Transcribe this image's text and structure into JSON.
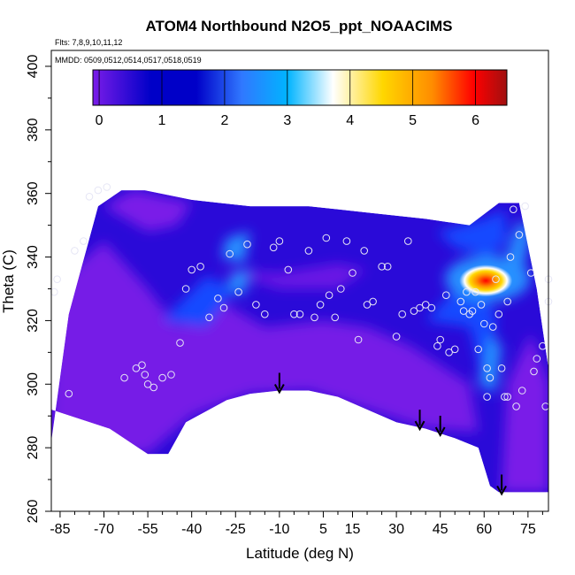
{
  "chart_data": {
    "type": "heatmap",
    "title": "ATOM4 Northbound N2O5_ppt_NOAACIMS",
    "flights_note": "Flts: 7,8,9,10,11,12",
    "dates_note": "MMDD: 0509,0512,0514,0517,0518,0519",
    "xlabel": "Latitude (deg N)",
    "ylabel": "Theta (C)",
    "xlim": [
      -88,
      82
    ],
    "ylim": [
      260,
      405
    ],
    "x_ticks": [
      -85,
      -70,
      -55,
      -40,
      -25,
      -10,
      5,
      15,
      30,
      45,
      60,
      75
    ],
    "x_tick_labels": [
      "-85",
      "-70",
      "-55",
      "-40",
      "-25",
      "-10",
      "5",
      "15",
      "30",
      "45",
      "60",
      "75"
    ],
    "y_ticks": [
      260,
      280,
      300,
      320,
      340,
      360,
      380,
      400
    ],
    "y_tick_labels": [
      "260",
      "280",
      "300",
      "320",
      "340",
      "360",
      "380",
      "400"
    ],
    "grid": false,
    "colorbar": {
      "range": [
        -0.1,
        6.5
      ],
      "ticks": [
        0,
        1,
        2,
        3,
        4,
        5,
        6
      ],
      "tick_labels": [
        "0",
        "1",
        "2",
        "3",
        "4",
        "5",
        "6"
      ],
      "colors": [
        "#7a1ce8",
        "#0000c8",
        "#3078ff",
        "#00b4ff",
        "#ffffff",
        "#ffd700",
        "#ff8c00",
        "#ff0000",
        "#a01010"
      ],
      "placement": "top"
    },
    "field_colors": {
      "background": "#2a0ad8",
      "low": "#7a1ce8",
      "medium": "#1848ff",
      "high": "#2890ff",
      "hotspot": [
        "#ff0000",
        "#ff8c00",
        "#ffd700"
      ]
    },
    "surface_boundary": [
      [
        -88,
        292
      ],
      [
        -68,
        286
      ],
      [
        -55,
        278
      ],
      [
        -48,
        278
      ],
      [
        -42,
        288
      ],
      [
        -28,
        295
      ],
      [
        -20,
        297
      ],
      [
        -10,
        298
      ],
      [
        0,
        298
      ],
      [
        10,
        296
      ],
      [
        20,
        292
      ],
      [
        30,
        288
      ],
      [
        40,
        286
      ],
      [
        50,
        283
      ],
      [
        58,
        280
      ],
      [
        62,
        268
      ],
      [
        65,
        266
      ],
      [
        82,
        266
      ]
    ],
    "top_boundary": [
      [
        -88,
        282
      ],
      [
        -82,
        322
      ],
      [
        -72,
        356
      ],
      [
        -64,
        361
      ],
      [
        -56,
        361
      ],
      [
        -40,
        358
      ],
      [
        -20,
        356
      ],
      [
        0,
        356
      ],
      [
        20,
        354
      ],
      [
        40,
        352
      ],
      [
        55,
        350
      ],
      [
        65,
        357
      ],
      [
        72,
        357
      ],
      [
        78,
        330
      ],
      [
        82,
        305
      ],
      [
        82,
        266
      ]
    ],
    "hotspot": {
      "lat": 63,
      "theta": 332,
      "max_value": 6.5
    },
    "observation_points": [
      [
        -87,
        329
      ],
      [
        -86,
        333
      ],
      [
        -80,
        342
      ],
      [
        -77,
        345
      ],
      [
        -75,
        359
      ],
      [
        -72,
        361
      ],
      [
        -69,
        362
      ],
      [
        -82,
        297
      ],
      [
        -63,
        302
      ],
      [
        -59,
        305
      ],
      [
        -57,
        306
      ],
      [
        -56,
        303
      ],
      [
        -55,
        300
      ],
      [
        -53,
        299
      ],
      [
        -50,
        302
      ],
      [
        -47,
        303
      ],
      [
        -44,
        313
      ],
      [
        -42,
        330
      ],
      [
        -40,
        336
      ],
      [
        -37,
        337
      ],
      [
        -34,
        321
      ],
      [
        -31,
        327
      ],
      [
        -29,
        324
      ],
      [
        -27,
        341
      ],
      [
        -24,
        329
      ],
      [
        -21,
        344
      ],
      [
        -18,
        325
      ],
      [
        -15,
        322
      ],
      [
        -12,
        343
      ],
      [
        -10,
        345
      ],
      [
        -7,
        336
      ],
      [
        -5,
        322
      ],
      [
        -3,
        322
      ],
      [
        0,
        342
      ],
      [
        2,
        321
      ],
      [
        4,
        325
      ],
      [
        6,
        346
      ],
      [
        7,
        328
      ],
      [
        9,
        321
      ],
      [
        11,
        330
      ],
      [
        13,
        345
      ],
      [
        15,
        335
      ],
      [
        17,
        314
      ],
      [
        19,
        342
      ],
      [
        20,
        325
      ],
      [
        22,
        326
      ],
      [
        25,
        337
      ],
      [
        27,
        337
      ],
      [
        30,
        315
      ],
      [
        32,
        322
      ],
      [
        34,
        345
      ],
      [
        36,
        323
      ],
      [
        38,
        324
      ],
      [
        40,
        325
      ],
      [
        42,
        324
      ],
      [
        44,
        312
      ],
      [
        45,
        314
      ],
      [
        47,
        328
      ],
      [
        48,
        310
      ],
      [
        50,
        311
      ],
      [
        52,
        326
      ],
      [
        53,
        323
      ],
      [
        54,
        329
      ],
      [
        55,
        322
      ],
      [
        56,
        323
      ],
      [
        57,
        329
      ],
      [
        58,
        311
      ],
      [
        59,
        325
      ],
      [
        60,
        319
      ],
      [
        61,
        305
      ],
      [
        61,
        296
      ],
      [
        62,
        302
      ],
      [
        63,
        318
      ],
      [
        64,
        333
      ],
      [
        65,
        322
      ],
      [
        66,
        305
      ],
      [
        67,
        296
      ],
      [
        68,
        326
      ],
      [
        68,
        296
      ],
      [
        69,
        340
      ],
      [
        70,
        355
      ],
      [
        71,
        293
      ],
      [
        72,
        347
      ],
      [
        73,
        298
      ],
      [
        74,
        356
      ],
      [
        76,
        335
      ],
      [
        77,
        304
      ],
      [
        78,
        308
      ],
      [
        80,
        312
      ],
      [
        81,
        293
      ],
      [
        82,
        326
      ],
      [
        82,
        333
      ]
    ],
    "arrows_at_lat": [
      -10,
      38,
      45,
      66
    ]
  }
}
